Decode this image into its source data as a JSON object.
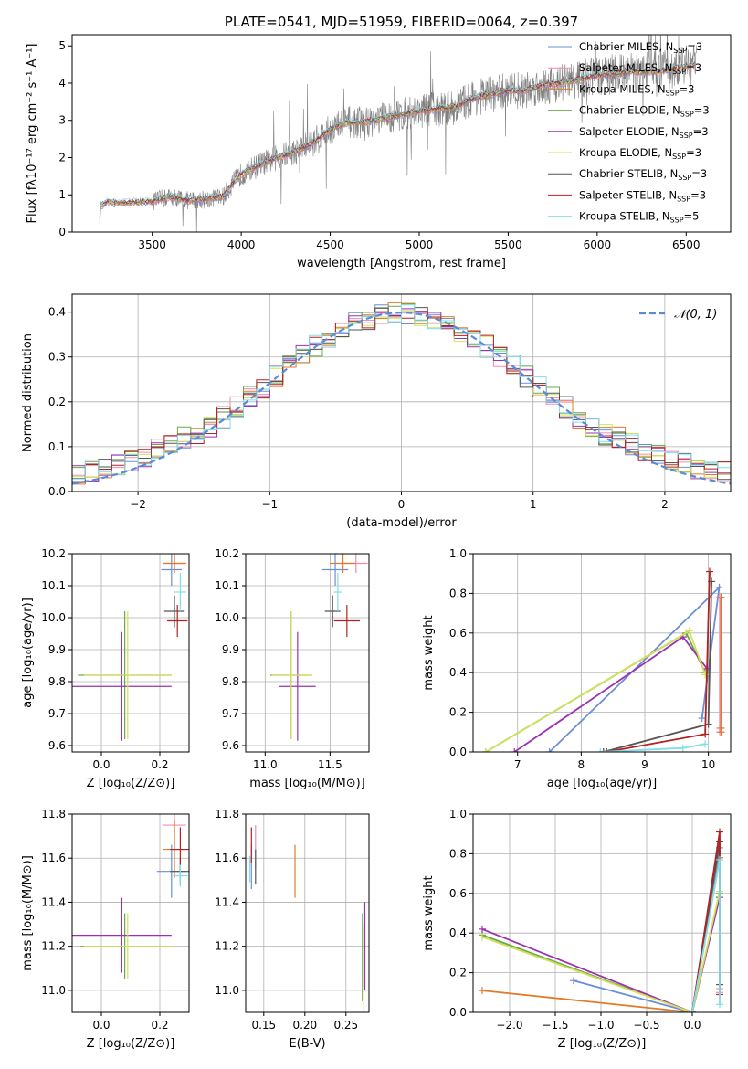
{
  "colors": {
    "chabrier_miles": "#6a8fd8",
    "salpeter_miles": "#f08cb0",
    "kroupa_miles": "#e07b2a",
    "chabrier_elodie": "#6aa84f",
    "salpeter_elodie": "#9b30b0",
    "kroupa_elodie": "#d4e157",
    "chabrier_stelib": "#555555",
    "salpeter_stelib": "#b22222",
    "kroupa_stelib": "#80deea",
    "normal": "#5b8bd6",
    "spectrum": "#808080"
  },
  "chart_data": [
    {
      "id": "spectrum",
      "type": "line",
      "title": "PLATE=0541, MJD=51959, FIBERID=0064, z=0.397",
      "xlabel": "wavelength [Angstrom, rest frame]",
      "ylabel": "Flux [fλ10⁻¹⁷ erg cm⁻² s⁻¹ A⁻¹]",
      "xlim": [
        3050,
        6750
      ],
      "ylim": [
        0,
        5.3
      ],
      "xticks": [
        3500,
        4000,
        4500,
        5000,
        5500,
        6000,
        6500
      ],
      "yticks": [
        0,
        1,
        2,
        3,
        4,
        5
      ],
      "legend_position": "top-right",
      "legend": [
        {
          "label": "Chabrier MILES, N",
          "sub": "SSP",
          "suffix": "=3",
          "color_key": "chabrier_miles"
        },
        {
          "label": "Salpeter MILES, N",
          "sub": "SSP",
          "suffix": "=3",
          "color_key": "salpeter_miles"
        },
        {
          "label": "Kroupa MILES, N",
          "sub": "SSP",
          "suffix": "=3",
          "color_key": "kroupa_miles"
        },
        {
          "label": "Chabrier ELODIE, N",
          "sub": "SSP",
          "suffix": "=3",
          "color_key": "chabrier_elodie"
        },
        {
          "label": "Salpeter ELODIE, N",
          "sub": "SSP",
          "suffix": "=3",
          "color_key": "salpeter_elodie"
        },
        {
          "label": "Kroupa ELODIE, N",
          "sub": "SSP",
          "suffix": "=3",
          "color_key": "kroupa_elodie"
        },
        {
          "label": "Chabrier STELIB, N",
          "sub": "SSP",
          "suffix": "=3",
          "color_key": "chabrier_stelib"
        },
        {
          "label": "Salpeter STELIB, N",
          "sub": "SSP",
          "suffix": "=3",
          "color_key": "salpeter_stelib"
        },
        {
          "label": "Kroupa STELIB, N",
          "sub": "SSP",
          "suffix": "=5",
          "color_key": "kroupa_stelib"
        }
      ],
      "continuum": [
        [
          3200,
          0
        ],
        [
          3210,
          0.7
        ],
        [
          3250,
          0.82
        ],
        [
          3300,
          0.78
        ],
        [
          3400,
          0.8
        ],
        [
          3500,
          0.82
        ],
        [
          3600,
          0.95
        ],
        [
          3700,
          0.85
        ],
        [
          3800,
          0.88
        ],
        [
          3900,
          0.95
        ],
        [
          3950,
          1.3
        ],
        [
          4000,
          1.55
        ],
        [
          4100,
          1.8
        ],
        [
          4200,
          2.0
        ],
        [
          4300,
          2.15
        ],
        [
          4400,
          2.4
        ],
        [
          4500,
          2.75
        ],
        [
          4600,
          2.95
        ],
        [
          4700,
          2.95
        ],
        [
          4800,
          3.05
        ],
        [
          4900,
          3.15
        ],
        [
          5000,
          3.25
        ],
        [
          5100,
          3.3
        ],
        [
          5200,
          3.35
        ],
        [
          5300,
          3.6
        ],
        [
          5400,
          3.7
        ],
        [
          5500,
          3.8
        ],
        [
          5600,
          3.8
        ],
        [
          5700,
          3.95
        ],
        [
          5800,
          4.0
        ],
        [
          5900,
          4.1
        ],
        [
          6000,
          4.2
        ],
        [
          6100,
          4.25
        ],
        [
          6200,
          4.3
        ],
        [
          6300,
          4.3
        ],
        [
          6400,
          4.35
        ],
        [
          6500,
          4.45
        ],
        [
          6600,
          4.5
        ]
      ]
    },
    {
      "id": "residuals",
      "type": "step",
      "xlabel": "(data-model)/error",
      "ylabel": "Normed distribution",
      "xlim": [
        -2.5,
        2.5
      ],
      "ylim": [
        0,
        0.44
      ],
      "xticks": [
        -2,
        -1,
        0,
        1,
        2
      ],
      "yticks": [
        0.0,
        0.1,
        0.2,
        0.3,
        0.4
      ],
      "grid": true,
      "legend_position": "top-right",
      "legend": [
        {
          "label": "𝒩(0, 1)",
          "color_key": "normal",
          "style": "dashed"
        }
      ]
    },
    {
      "id": "age_vs_Z",
      "type": "errorbar",
      "xlabel": "Z [log₁₀(Z/Z⊙)]",
      "ylabel": "age  [log₁₀(age/yr)]",
      "xlim": [
        -0.1,
        0.3
      ],
      "ylim": [
        9.58,
        10.2
      ],
      "xticks": [
        0.0,
        0.2
      ],
      "yticks": [
        9.6,
        9.7,
        9.8,
        9.9,
        10.0,
        10.1,
        10.2
      ],
      "grid": true,
      "points": [
        {
          "c": "chabrier_miles",
          "x": 0.24,
          "xerr": 0.035,
          "y": 10.15,
          "yerr": 0.05
        },
        {
          "c": "salpeter_miles",
          "x": 0.25,
          "xerr": 0.04,
          "y": 10.17,
          "yerr": 0.03
        },
        {
          "c": "kroupa_miles",
          "x": 0.25,
          "xerr": 0.04,
          "y": 10.17,
          "yerr": 0.03
        },
        {
          "c": "chabrier_elodie",
          "x": 0.08,
          "xerr": 0.16,
          "y": 9.82,
          "yerr": 0.2
        },
        {
          "c": "salpeter_elodie",
          "x": 0.07,
          "xerr": 0.17,
          "y": 9.785,
          "yerr": 0.17
        },
        {
          "c": "kroupa_elodie",
          "x": 0.09,
          "xerr": 0.15,
          "y": 9.82,
          "yerr": 0.2
        },
        {
          "c": "chabrier_stelib",
          "x": 0.25,
          "xerr": 0.035,
          "y": 10.02,
          "yerr": 0.05
        },
        {
          "c": "salpeter_stelib",
          "x": 0.26,
          "xerr": 0.035,
          "y": 9.99,
          "yerr": 0.05
        },
        {
          "c": "kroupa_stelib",
          "x": 0.27,
          "xerr": 0.02,
          "y": 10.08,
          "yerr": 0.06
        }
      ]
    },
    {
      "id": "age_vs_mass",
      "type": "errorbar",
      "xlabel": "mass [log₁₀(M/M⊙)]",
      "ylabel": "",
      "xlim": [
        10.85,
        11.8
      ],
      "ylim": [
        9.58,
        10.2
      ],
      "xticks": [
        11.0,
        11.5
      ],
      "yticks": [
        9.6,
        9.7,
        9.8,
        9.9,
        10.0,
        10.1,
        10.2
      ],
      "grid": true,
      "points": [
        {
          "c": "chabrier_miles",
          "x": 11.54,
          "xerr": 0.1,
          "y": 10.15,
          "yerr": 0.05
        },
        {
          "c": "salpeter_miles",
          "x": 11.7,
          "xerr": 0.09,
          "y": 10.17,
          "yerr": 0.03
        },
        {
          "c": "kroupa_miles",
          "x": 11.6,
          "xerr": 0.1,
          "y": 10.17,
          "yerr": 0.03
        },
        {
          "c": "chabrier_elodie",
          "x": 11.2,
          "xerr": 0.16,
          "y": 9.82,
          "yerr": 0.2
        },
        {
          "c": "salpeter_elodie",
          "x": 11.25,
          "xerr": 0.14,
          "y": 9.785,
          "yerr": 0.17
        },
        {
          "c": "kroupa_elodie",
          "x": 11.2,
          "xerr": 0.15,
          "y": 9.82,
          "yerr": 0.2
        },
        {
          "c": "chabrier_stelib",
          "x": 11.52,
          "xerr": 0.06,
          "y": 10.02,
          "yerr": 0.05
        },
        {
          "c": "salpeter_stelib",
          "x": 11.63,
          "xerr": 0.1,
          "y": 9.99,
          "yerr": 0.05
        },
        {
          "c": "kroupa_stelib",
          "x": 11.56,
          "xerr": 0.03,
          "y": 10.08,
          "yerr": 0.06
        }
      ]
    },
    {
      "id": "massweight_vs_age",
      "type": "line",
      "xlabel": "age  [log₁₀(age/yr)]",
      "ylabel": "mass weight",
      "xlim": [
        6.3,
        10.35
      ],
      "ylim": [
        0,
        1
      ],
      "xticks": [
        7,
        8,
        9,
        10
      ],
      "yticks": [
        0.0,
        0.2,
        0.4,
        0.6,
        0.8,
        1.0
      ],
      "grid": true,
      "series": [
        {
          "c": "chabrier_miles",
          "x": [
            7.5,
            10.17,
            9.9
          ],
          "y": [
            0.0,
            0.83,
            0.17
          ]
        },
        {
          "c": "salpeter_miles",
          "x": [
            10.18,
            10.18,
            10.18
          ],
          "y": [
            0.1,
            0.78,
            0.12
          ]
        },
        {
          "c": "kroupa_miles",
          "x": [
            10.2,
            10.2,
            10.2
          ],
          "y": [
            0.1,
            0.78,
            0.12
          ]
        },
        {
          "c": "chabrier_elodie",
          "x": [
            6.5,
            9.65,
            9.95
          ],
          "y": [
            0.0,
            0.6,
            0.4
          ]
        },
        {
          "c": "salpeter_elodie",
          "x": [
            6.95,
            9.6,
            9.98
          ],
          "y": [
            0.0,
            0.58,
            0.42
          ]
        },
        {
          "c": "kroupa_elodie",
          "x": [
            6.5,
            9.7,
            9.95
          ],
          "y": [
            0.0,
            0.61,
            0.39
          ]
        },
        {
          "c": "chabrier_stelib",
          "x": [
            8.35,
            10.0,
            10.05
          ],
          "y": [
            0.0,
            0.14,
            0.86
          ]
        },
        {
          "c": "salpeter_stelib",
          "x": [
            8.4,
            9.95,
            10.02
          ],
          "y": [
            0.0,
            0.09,
            0.91
          ]
        },
        {
          "c": "kroupa_stelib",
          "x": [
            8.3,
            9.6,
            9.95
          ],
          "y": [
            0.0,
            0.02,
            0.04
          ]
        }
      ]
    },
    {
      "id": "mass_vs_Z",
      "type": "errorbar",
      "xlabel": "Z [log₁₀(Z/Z⊙)]",
      "ylabel": "mass [log₁₀(M/M⊙)]",
      "xlim": [
        -0.1,
        0.3
      ],
      "ylim": [
        10.9,
        11.8
      ],
      "xticks": [
        0.0,
        0.2
      ],
      "yticks": [
        11.0,
        11.2,
        11.4,
        11.6,
        11.8
      ],
      "grid": true,
      "points": [
        {
          "c": "chabrier_miles",
          "x": 0.24,
          "xerr": 0.05,
          "y": 11.54,
          "yerr": 0.12
        },
        {
          "c": "salpeter_miles",
          "x": 0.25,
          "xerr": 0.04,
          "y": 11.75,
          "yerr": 0.1
        },
        {
          "c": "kroupa_miles",
          "x": 0.25,
          "xerr": 0.04,
          "y": 11.64,
          "yerr": 0.13
        },
        {
          "c": "chabrier_elodie",
          "x": 0.08,
          "xerr": 0.15,
          "y": 11.2,
          "yerr": 0.15
        },
        {
          "c": "salpeter_elodie",
          "x": 0.07,
          "xerr": 0.17,
          "y": 11.25,
          "yerr": 0.17
        },
        {
          "c": "kroupa_elodie",
          "x": 0.09,
          "xerr": 0.15,
          "y": 11.2,
          "yerr": 0.15
        },
        {
          "c": "chabrier_stelib",
          "x": 0.27,
          "xerr": 0.035,
          "y": 11.54,
          "yerr": 0.06
        },
        {
          "c": "salpeter_stelib",
          "x": 0.27,
          "xerr": 0.035,
          "y": 11.64,
          "yerr": 0.1
        },
        {
          "c": "kroupa_stelib",
          "x": 0.27,
          "xerr": 0.025,
          "y": 11.52,
          "yerr": 0.05
        }
      ]
    },
    {
      "id": "mass_vs_EBV",
      "type": "errorbar",
      "xlabel": "E(B-V)",
      "ylabel": "",
      "xlim": [
        0.128,
        0.278
      ],
      "ylim": [
        10.9,
        11.8
      ],
      "xticks": [
        0.15,
        0.2,
        0.25
      ],
      "yticks": [
        11.0,
        11.2,
        11.4,
        11.6,
        11.8
      ],
      "grid": true,
      "points": [
        {
          "c": "chabrier_miles",
          "x": 0.135,
          "xerr": 0,
          "y": 11.56,
          "yerr": 0.1
        },
        {
          "c": "salpeter_miles",
          "x": 0.14,
          "xerr": 0,
          "y": 11.65,
          "yerr": 0.1
        },
        {
          "c": "kroupa_miles",
          "x": 0.188,
          "xerr": 0,
          "y": 11.54,
          "yerr": 0.12
        },
        {
          "c": "chabrier_elodie",
          "x": 0.27,
          "xerr": 0,
          "y": 11.15,
          "yerr": 0.2
        },
        {
          "c": "salpeter_elodie",
          "x": 0.273,
          "xerr": 0,
          "y": 11.2,
          "yerr": 0.2
        },
        {
          "c": "kroupa_elodie",
          "x": 0.271,
          "xerr": 0,
          "y": 11.1,
          "yerr": 0.2
        },
        {
          "c": "chabrier_stelib",
          "x": 0.14,
          "xerr": 0,
          "y": 11.56,
          "yerr": 0.08
        },
        {
          "c": "salpeter_stelib",
          "x": 0.135,
          "xerr": 0,
          "y": 11.66,
          "yerr": 0.08
        },
        {
          "c": "kroupa_stelib",
          "x": 0.133,
          "xerr": 0,
          "y": 11.55,
          "yerr": 0.06
        }
      ]
    },
    {
      "id": "massweight_vs_Z",
      "type": "line",
      "xlabel": "Z [log₁₀(Z/Z⊙)]",
      "ylabel": "mass weight",
      "xlim": [
        -2.4,
        0.42
      ],
      "ylim": [
        0,
        1
      ],
      "xticks": [
        -2.0,
        -1.5,
        -1.0,
        -0.5,
        0.0
      ],
      "yticks": [
        0.0,
        0.2,
        0.4,
        0.6,
        0.8,
        1.0
      ],
      "grid": true,
      "series": [
        {
          "c": "chabrier_miles",
          "x": [
            -1.3,
            0.0,
            0.3
          ],
          "y": [
            0.16,
            0.0,
            0.83
          ]
        },
        {
          "c": "salpeter_miles",
          "x": [
            0.3,
            0.3,
            0.3
          ],
          "y": [
            0.1,
            0.78,
            0.12
          ]
        },
        {
          "c": "kroupa_miles",
          "x": [
            -2.3,
            0.0,
            0.3
          ],
          "y": [
            0.11,
            0.0,
            0.78
          ]
        },
        {
          "c": "chabrier_elodie",
          "x": [
            -2.3,
            0.0,
            0.3
          ],
          "y": [
            0.39,
            0.0,
            0.6
          ]
        },
        {
          "c": "salpeter_elodie",
          "x": [
            -2.3,
            0.0,
            0.3
          ],
          "y": [
            0.42,
            0.0,
            0.58
          ]
        },
        {
          "c": "kroupa_elodie",
          "x": [
            -2.3,
            0.0,
            0.3
          ],
          "y": [
            0.38,
            0.0,
            0.61
          ]
        },
        {
          "c": "chabrier_stelib",
          "x": [
            0.0,
            0.3,
            0.3
          ],
          "y": [
            0.0,
            0.86,
            0.14
          ]
        },
        {
          "c": "salpeter_stelib",
          "x": [
            0.0,
            0.3,
            0.3
          ],
          "y": [
            0.0,
            0.91,
            0.09
          ]
        },
        {
          "c": "kroupa_stelib",
          "x": [
            0.0,
            0.3,
            0.3
          ],
          "y": [
            0.0,
            0.77,
            0.04
          ]
        }
      ]
    }
  ]
}
